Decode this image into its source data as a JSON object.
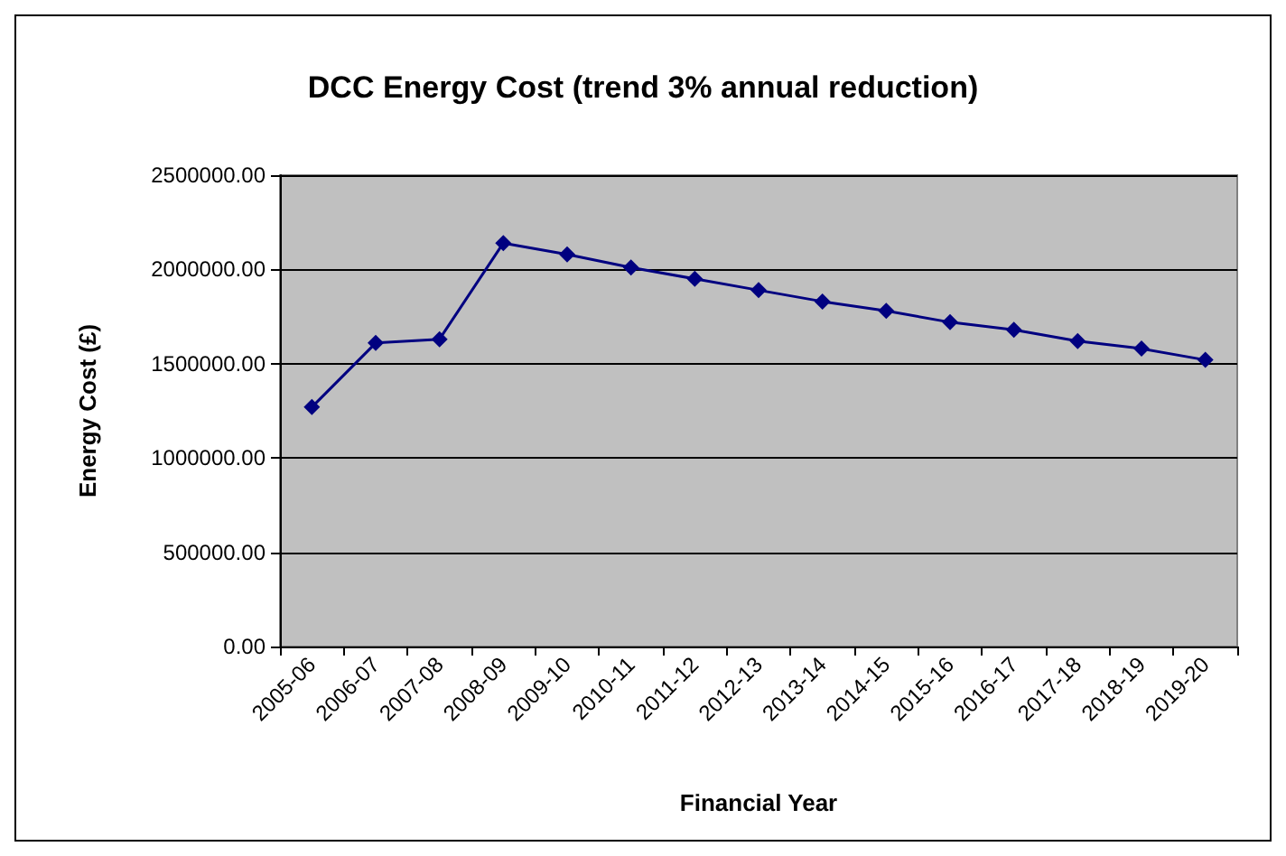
{
  "chart_data": {
    "type": "line",
    "title": "DCC Energy Cost (trend 3% annual reduction)",
    "xlabel": "Financial Year",
    "ylabel": "Energy Cost (£)",
    "categories": [
      "2005-06",
      "2006-07",
      "2007-08",
      "2008-09",
      "2009-10",
      "2010-11",
      "2011-12",
      "2012-13",
      "2013-14",
      "2014-15",
      "2015-16",
      "2016-17",
      "2017-18",
      "2018-19",
      "2019-20"
    ],
    "series": [
      {
        "color": "#000080",
        "values": [
          1270000,
          1610000,
          1630000,
          2140000,
          2080000,
          2010000,
          1950000,
          1890000,
          1830000,
          1780000,
          1720000,
          1680000,
          1620000,
          1580000,
          1520000
        ]
      }
    ],
    "ylim": [
      0,
      2500000
    ],
    "yticks": [
      {
        "value": 0,
        "label": "0.00"
      },
      {
        "value": 500000,
        "label": "500000.00"
      },
      {
        "value": 1000000,
        "label": "1000000.00"
      },
      {
        "value": 1500000,
        "label": "1500000.00"
      },
      {
        "value": 2000000,
        "label": "2000000.00"
      },
      {
        "value": 2500000,
        "label": "2500000.00"
      }
    ],
    "grid": "y",
    "marker": "diamond",
    "line_style": "solid"
  }
}
